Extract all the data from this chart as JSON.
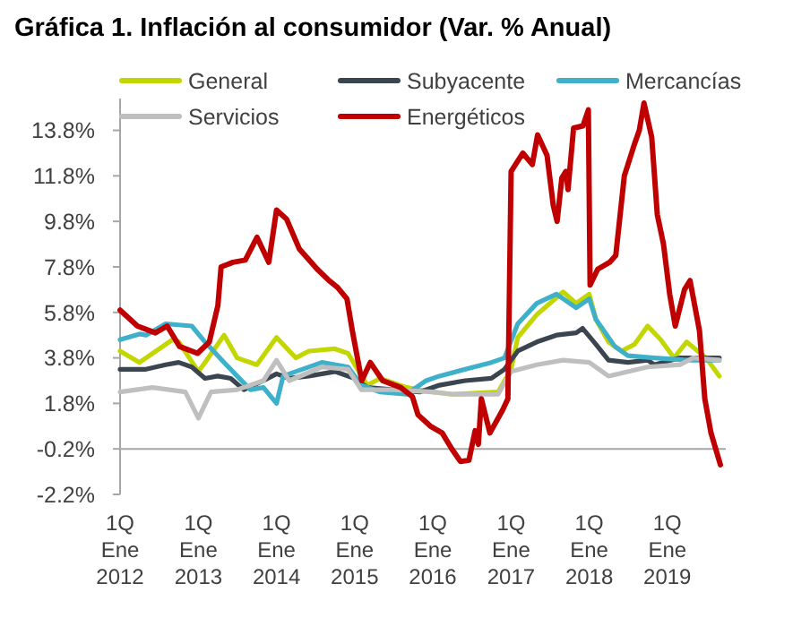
{
  "chart_data": {
    "type": "line",
    "title": "Gráfica 1. Inflación al consumidor (Var. % Anual)",
    "xlim": [
      "2012-01-01",
      "2019-10-01"
    ],
    "xticks": [
      {
        "value": "2012-01-01",
        "label": "1Q\nEne\n2012"
      },
      {
        "value": "2013-01-01",
        "label": "1Q\nEne\n2013"
      },
      {
        "value": "2014-01-01",
        "label": "1Q\nEne\n2014"
      },
      {
        "value": "2015-01-01",
        "label": "1Q\nEne\n2015"
      },
      {
        "value": "2016-01-01",
        "label": "1Q\nEne\n2016"
      },
      {
        "value": "2017-01-01",
        "label": "1Q\nEne\n2017"
      },
      {
        "value": "2018-01-01",
        "label": "1Q\nEne\n2018"
      },
      {
        "value": "2019-01-01",
        "label": "1Q\nEne\n2019"
      }
    ],
    "ylim": [
      -2.2,
      15.2
    ],
    "yticks": [
      {
        "value": -2.2,
        "label": "-2.2%"
      },
      {
        "value": -0.2,
        "label": "-0.2%"
      },
      {
        "value": 1.8,
        "label": "1.8%"
      },
      {
        "value": 3.8,
        "label": "3.8%"
      },
      {
        "value": 5.8,
        "label": "5.8%"
      },
      {
        "value": 7.8,
        "label": "7.8%"
      },
      {
        "value": 9.8,
        "label": "9.8%"
      },
      {
        "value": 11.8,
        "label": "11.8%"
      },
      {
        "value": 13.8,
        "label": "13.8%"
      }
    ],
    "ref_lines": [
      {
        "axis": "y",
        "value": -0.2,
        "color": "#a6a6a6"
      }
    ],
    "legend": "top",
    "grid": false,
    "marker": "none",
    "line_style": "solid",
    "series": [
      {
        "name": "General",
        "color": "#c4d600",
        "x": [
          "2012-01",
          "2012-04",
          "2012-09",
          "2012-10",
          "2013-01",
          "2013-02",
          "2013-05",
          "2013-07",
          "2013-10",
          "2014-01",
          "2014-04",
          "2014-06",
          "2014-10",
          "2014-12",
          "2015-03",
          "2015-05",
          "2015-09",
          "2016-01",
          "2016-04",
          "2016-11",
          "2017-01",
          "2017-02",
          "2017-05",
          "2017-09",
          "2017-11",
          "2018-01",
          "2018-02",
          "2018-04",
          "2018-06",
          "2018-08",
          "2018-10",
          "2018-12",
          "2019-02",
          "2019-04",
          "2019-07",
          "2019-09"
        ],
        "values": [
          4.1,
          3.6,
          4.6,
          4.5,
          3.2,
          3.6,
          4.8,
          3.8,
          3.5,
          4.7,
          3.8,
          4.1,
          4.2,
          4.0,
          2.6,
          2.9,
          2.5,
          2.3,
          2.2,
          2.3,
          3.3,
          4.7,
          5.7,
          6.7,
          6.2,
          6.6,
          5.5,
          4.5,
          4.1,
          4.4,
          5.2,
          4.6,
          3.8,
          4.5,
          3.8,
          3.0
        ]
      },
      {
        "name": "Subyacente",
        "color": "#3b4550",
        "x": [
          "2012-01",
          "2012-05",
          "2012-08",
          "2012-10",
          "2012-12",
          "2013-02",
          "2013-04",
          "2013-06",
          "2013-08",
          "2013-11",
          "2014-01",
          "2014-03",
          "2014-06",
          "2014-10",
          "2015-01",
          "2015-03",
          "2015-07",
          "2015-11",
          "2016-02",
          "2016-06",
          "2016-10",
          "2016-12",
          "2017-02",
          "2017-05",
          "2017-08",
          "2017-11",
          "2017-12",
          "2018-02",
          "2018-04",
          "2018-07",
          "2018-10",
          "2018-11",
          "2019-03",
          "2019-09"
        ],
        "values": [
          3.3,
          3.3,
          3.5,
          3.6,
          3.4,
          2.9,
          3.0,
          2.9,
          2.4,
          2.8,
          3.1,
          2.9,
          3.0,
          3.2,
          2.9,
          2.5,
          2.4,
          2.3,
          2.6,
          2.8,
          2.9,
          3.3,
          4.1,
          4.5,
          4.8,
          4.9,
          5.1,
          4.4,
          3.7,
          3.6,
          3.7,
          3.5,
          3.8,
          3.8
        ]
      },
      {
        "name": "Mercancías",
        "color": "#3fb0c9",
        "x": [
          "2012-01",
          "2012-04",
          "2012-05",
          "2012-08",
          "2012-12",
          "2013-02",
          "2013-04",
          "2013-05",
          "2013-07",
          "2013-09",
          "2013-11",
          "2014-01",
          "2014-02",
          "2014-04",
          "2014-08",
          "2014-12",
          "2015-02",
          "2015-05",
          "2015-09",
          "2015-12",
          "2016-02",
          "2016-06",
          "2016-10",
          "2016-12",
          "2017-02",
          "2017-05",
          "2017-08",
          "2017-11",
          "2018-01",
          "2018-02",
          "2018-05",
          "2018-07",
          "2018-11",
          "2019-04",
          "2019-09"
        ],
        "values": [
          4.6,
          4.85,
          4.8,
          5.3,
          5.2,
          4.5,
          3.9,
          3.6,
          3.0,
          2.4,
          2.5,
          1.8,
          3.0,
          3.2,
          3.6,
          3.4,
          2.6,
          2.3,
          2.2,
          2.8,
          3.0,
          3.3,
          3.6,
          3.8,
          5.3,
          6.2,
          6.6,
          6.0,
          6.4,
          5.5,
          4.3,
          3.9,
          3.8,
          3.7,
          3.7
        ]
      },
      {
        "name": "Servicios",
        "color": "#bfbfbf",
        "x": [
          "2012-01",
          "2012-06",
          "2012-11",
          "2013-01",
          "2013-03",
          "2013-07",
          "2013-11",
          "2014-01",
          "2014-03",
          "2014-08",
          "2014-12",
          "2015-02",
          "2015-07",
          "2016-01",
          "2016-04",
          "2016-11",
          "2017-01",
          "2017-05",
          "2017-09",
          "2018-01",
          "2018-04",
          "2018-10",
          "2019-03",
          "2019-05",
          "2019-09"
        ],
        "values": [
          2.3,
          2.5,
          2.3,
          1.15,
          2.3,
          2.4,
          2.8,
          3.7,
          2.8,
          3.4,
          3.3,
          2.4,
          2.4,
          2.3,
          2.2,
          2.2,
          3.2,
          3.5,
          3.7,
          3.6,
          3.0,
          3.4,
          3.5,
          3.8,
          3.7
        ]
      },
      {
        "name": "Energéticos",
        "color": "#c00000",
        "x": [
          "2012-01-01",
          "2012-03-22",
          "2012-06-14",
          "2012-08-08",
          "2012-10-05",
          "2012-12-28",
          "2013-02-21",
          "2013-04-02",
          "2013-04-17",
          "2013-06-11",
          "2013-08-08",
          "2013-10-02",
          "2013-11-26",
          "2014-01-01",
          "2014-02-17",
          "2014-04-17",
          "2014-07-10",
          "2014-09-03",
          "2014-10-13",
          "2014-11-26",
          "2014-12-21",
          "2015-02-03",
          "2015-03-15",
          "2015-05-12",
          "2015-08-04",
          "2015-09-28",
          "2015-10-24",
          "2015-12-21",
          "2016-02-14",
          "2016-03-30",
          "2016-05-09",
          "2016-06-18",
          "2016-07-17",
          "2016-08-01",
          "2016-08-15",
          "2016-09-24",
          "2016-11-22",
          "2016-12-17",
          "2017-01-01",
          "2017-02-25",
          "2017-04-10",
          "2017-05-05",
          "2017-06-18",
          "2017-07-17",
          "2017-08-04",
          "2017-08-26",
          "2017-09-14",
          "2017-09-24",
          "2017-10-20",
          "2017-12-03",
          "2017-12-28",
          "2018-01-05",
          "2018-02-10",
          "2018-04-06",
          "2018-05-05",
          "2018-06-14",
          "2018-07-28",
          "2018-08-23",
          "2018-09-14",
          "2018-10-20",
          "2018-11-15",
          "2018-12-14",
          "2019-01-12",
          "2019-02-07",
          "2019-03-22",
          "2019-04-17",
          "2019-05-31",
          "2019-06-25",
          "2019-07-24",
          "2019-09-06"
        ],
        "values": [
          5.9,
          5.2,
          4.9,
          5.2,
          4.3,
          4.0,
          4.5,
          6.1,
          7.8,
          8.0,
          8.1,
          9.1,
          8.0,
          10.3,
          9.9,
          8.6,
          7.7,
          7.2,
          6.9,
          6.4,
          5.0,
          2.8,
          3.6,
          2.8,
          2.5,
          2.1,
          1.3,
          0.8,
          0.5,
          -0.2,
          -0.75,
          -0.7,
          0.6,
          0.0,
          2.0,
          0.5,
          1.5,
          2.0,
          12.0,
          12.8,
          12.3,
          13.6,
          12.7,
          10.5,
          9.8,
          11.7,
          12.0,
          11.2,
          13.9,
          14.0,
          14.7,
          7.0,
          7.7,
          8.0,
          8.3,
          11.8,
          13.1,
          13.8,
          15.0,
          13.5,
          10.1,
          8.8,
          6.6,
          5.2,
          6.8,
          7.2,
          5.0,
          2.0,
          0.5,
          -0.9
        ]
      }
    ]
  }
}
